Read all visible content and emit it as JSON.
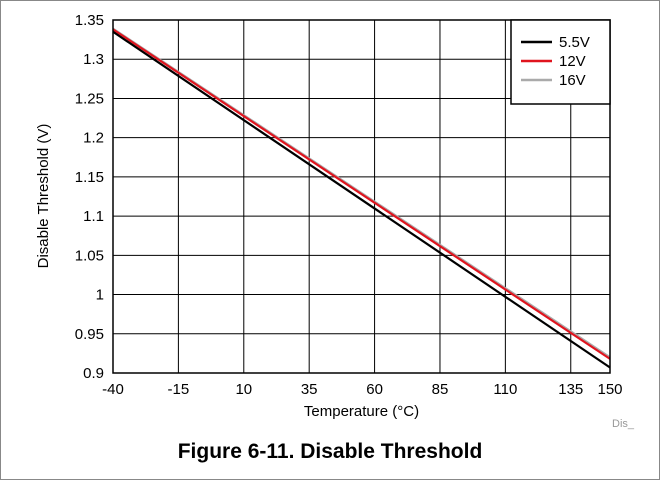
{
  "figure_caption": "Figure 6-11. Disable Threshold",
  "image_tag": "Dis_",
  "chart_data": {
    "type": "line",
    "xlabel": "Temperature (°C)",
    "ylabel": "Disable Threshold (V)",
    "xlim": [
      -40,
      150
    ],
    "ylim": [
      0.9,
      1.35
    ],
    "xticks": [
      -40,
      -15,
      10,
      35,
      60,
      85,
      110,
      135,
      150
    ],
    "xtick_labels": [
      "-40",
      "-15",
      "10",
      "35",
      "60",
      "85",
      "110",
      "135",
      "150"
    ],
    "yticks": [
      0.9,
      0.95,
      1.0,
      1.05,
      1.1,
      1.15,
      1.2,
      1.25,
      1.3,
      1.35
    ],
    "ytick_labels": [
      "0.9",
      "0.95",
      "1",
      "1.05",
      "1.1",
      "1.15",
      "1.2",
      "1.25",
      "1.3",
      "1.35"
    ],
    "grid": true,
    "legend_position": "top-right",
    "series": [
      {
        "name": "5.5V",
        "color": "#000000",
        "x": [
          -40,
          150
        ],
        "y": [
          1.335,
          0.907
        ]
      },
      {
        "name": "12V",
        "color": "#e0141e",
        "x": [
          -40,
          150
        ],
        "y": [
          1.338,
          0.918
        ]
      },
      {
        "name": "16V",
        "color": "#aaaaaa",
        "x": [
          -40,
          150
        ],
        "y": [
          1.339,
          0.92
        ]
      }
    ]
  }
}
